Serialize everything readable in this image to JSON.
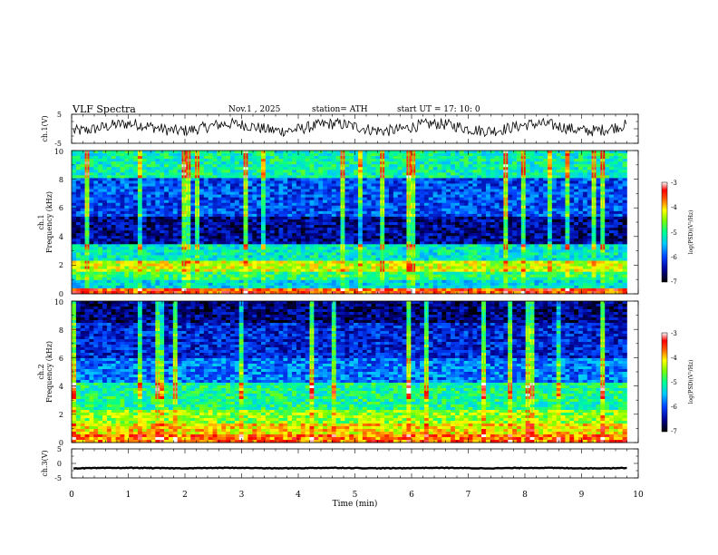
{
  "header": {
    "title": "VLF  Spectra",
    "date": "Nov.1  , 2025",
    "station": "station= ATH",
    "start": "start  UT  =   17: 10: 0"
  },
  "chart_data": [
    {
      "type": "line",
      "name": "ch1-waveform",
      "ylabel": "ch.1(V)",
      "ylim": [
        -5,
        5
      ],
      "y_ticks": [
        "5",
        "-5"
      ],
      "baseline": 0.5,
      "jitter": 2.0
    },
    {
      "type": "heatmap",
      "name": "ch1-spectrogram",
      "ylabel": "ch.1\nFrequency  (kHz)",
      "ylim": [
        0,
        10
      ],
      "y_ticks": [
        "0",
        "2",
        "4",
        "6",
        "8",
        "10"
      ],
      "colorbar": {
        "label": "log(PSD)(V²/Hz)",
        "range": [
          -7,
          -3
        ],
        "ticks": [
          "-3",
          "-4",
          "-5",
          "-6",
          "-7"
        ]
      },
      "bands": [
        {
          "from": 0.0,
          "to": 0.4,
          "level": -3.6
        },
        {
          "from": 0.4,
          "to": 1.0,
          "level": -5.3
        },
        {
          "from": 1.0,
          "to": 1.6,
          "level": -4.9
        },
        {
          "from": 1.6,
          "to": 2.4,
          "level": -4.3
        },
        {
          "from": 2.4,
          "to": 3.4,
          "level": -5.2
        },
        {
          "from": 3.4,
          "to": 5.4,
          "level": -6.5
        },
        {
          "from": 5.4,
          "to": 8.0,
          "level": -6.0
        },
        {
          "from": 8.0,
          "to": 10.0,
          "level": -5.1
        }
      ]
    },
    {
      "type": "heatmap",
      "name": "ch2-spectrogram",
      "ylabel": "ch.2\nFrequency  (kHz)",
      "ylim": [
        0,
        10
      ],
      "y_ticks": [
        "0",
        "2",
        "4",
        "6",
        "8",
        "10"
      ],
      "colorbar": {
        "label": "log(PSD)(V²/Hz)",
        "range": [
          -7,
          -3
        ],
        "ticks": [
          "-3",
          "-4",
          "-5",
          "-6",
          "-7"
        ]
      },
      "bands": [
        {
          "from": 0.0,
          "to": 0.6,
          "level": -3.7
        },
        {
          "from": 0.6,
          "to": 1.4,
          "level": -4.1
        },
        {
          "from": 1.4,
          "to": 2.4,
          "level": -4.5
        },
        {
          "from": 2.4,
          "to": 4.2,
          "level": -5.0
        },
        {
          "from": 4.2,
          "to": 6.0,
          "level": -5.8
        },
        {
          "from": 6.0,
          "to": 8.5,
          "level": -6.2
        },
        {
          "from": 8.5,
          "to": 10.0,
          "level": -6.6
        }
      ]
    },
    {
      "type": "line",
      "name": "ch3-waveform",
      "ylabel": "ch.3(V)",
      "ylim": [
        -5,
        5
      ],
      "y_ticks": [
        "5",
        "0",
        "-5"
      ],
      "baseline": -1.6,
      "jitter": 0.12
    }
  ],
  "xaxis": {
    "label": "Time  (min)",
    "range": [
      0,
      10
    ],
    "ticks": [
      "0",
      "1",
      "2",
      "3",
      "4",
      "5",
      "6",
      "7",
      "8",
      "9",
      "10"
    ],
    "data_end": 9.8
  }
}
